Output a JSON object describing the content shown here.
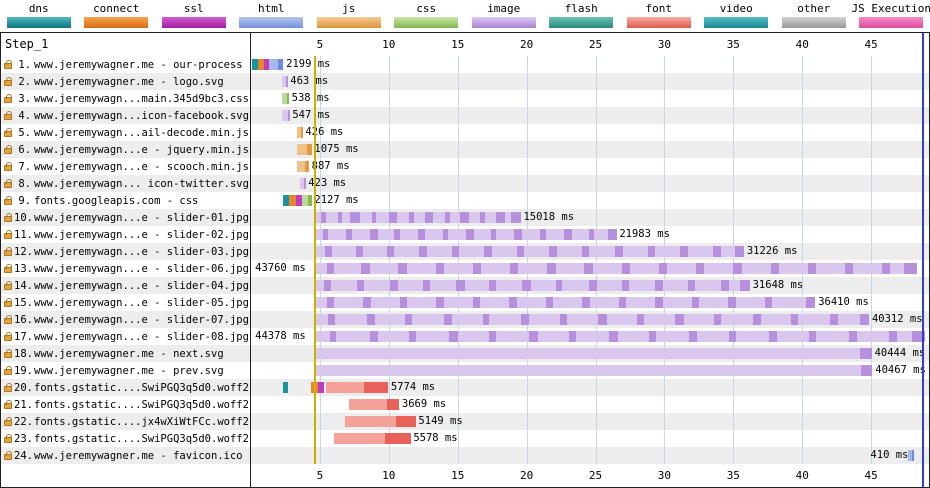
{
  "legend": {
    "items": [
      {
        "id": "dns",
        "label": "dns",
        "light": "#4FB6C2",
        "dark": "#0D7680"
      },
      {
        "id": "connect",
        "label": "connect",
        "light": "#F5A54E",
        "dark": "#D96C14"
      },
      {
        "id": "ssl",
        "label": "ssl",
        "light": "#D15CD1",
        "dark": "#A21EA2"
      },
      {
        "id": "html",
        "label": "html",
        "light": "#B6C6EE",
        "dark": "#7490D8"
      },
      {
        "id": "js",
        "label": "js",
        "light": "#F2CB96",
        "dark": "#DD9438"
      },
      {
        "id": "css",
        "label": "css",
        "light": "#CCE4AC",
        "dark": "#7FB84E"
      },
      {
        "id": "image",
        "label": "image",
        "light": "#DECBF0",
        "dark": "#AC82D6"
      },
      {
        "id": "flash",
        "label": "flash",
        "light": "#6CC2B2",
        "dark": "#2A8A7A"
      },
      {
        "id": "font",
        "label": "font",
        "light": "#F6ACA4",
        "dark": "#E45A4E"
      },
      {
        "id": "video",
        "label": "video",
        "light": "#55BCC2",
        "dark": "#1A8A92"
      },
      {
        "id": "other",
        "label": "other",
        "light": "#D2D2D2",
        "dark": "#9A9A9A"
      },
      {
        "id": "js-execution",
        "label": "JS Execution",
        "light": "#F48CC4",
        "dark": "#DE4E9E"
      }
    ]
  },
  "colors": {
    "dns": "#17949E",
    "connect": "#E8862E",
    "ssl": "#C13BC1",
    "html_l": "#A6BAE8",
    "html_d": "#6E8CD8",
    "js_l": "#EFC189",
    "js_d": "#DE9A45",
    "css_l": "#BCDB9A",
    "css_d": "#84BC52",
    "img_l": "#D9C7EE",
    "img_d": "#B690DC",
    "font_l": "#F4A29A",
    "font_d": "#E8625A",
    "gridline": "#C6D8E8"
  },
  "chart_data": {
    "type": "waterfall",
    "step_label": "Step_1",
    "time_axis": {
      "unit": "seconds",
      "ticks": [
        5,
        10,
        15,
        20,
        25,
        30,
        35,
        40,
        45
      ],
      "max_s": 49.2
    },
    "markers": {
      "start_render_s": 4.57,
      "start_render_color": "#C8B400",
      "doc_complete_s": 48.72,
      "doc_complete_color": "#2F3FD1"
    },
    "requests": [
      {
        "num": "1.",
        "label": "www.jeremywagner.me - our-process",
        "duration_ms": 2199,
        "duration_label": "2199 ms",
        "label_at": 2.55,
        "segments": [
          [
            "dns",
            0.1,
            0.5
          ],
          [
            "connect",
            0.5,
            0.95
          ],
          [
            "ssl",
            0.95,
            1.3
          ],
          [
            "html_l",
            1.3,
            1.95
          ],
          [
            "html_d",
            1.95,
            2.3
          ]
        ]
      },
      {
        "num": "2.",
        "label": "www.jeremywagner.me - logo.svg",
        "duration_ms": 463,
        "duration_label": "463 ms",
        "label_at": 2.85,
        "segments": [
          [
            "img_l",
            2.25,
            2.55
          ],
          [
            "img_d",
            2.55,
            2.71
          ]
        ]
      },
      {
        "num": "3.",
        "label": "www.jeremywagn...main.345d9bc3.css",
        "duration_ms": 538,
        "duration_label": "538 ms",
        "label_at": 2.95,
        "segments": [
          [
            "css_l",
            2.25,
            2.6
          ],
          [
            "css_d",
            2.6,
            2.79
          ]
        ]
      },
      {
        "num": "4.",
        "label": "www.jeremywagn...icon-facebook.svg",
        "duration_ms": 547,
        "duration_label": "547 ms",
        "label_at": 3.0,
        "segments": [
          [
            "img_l",
            2.28,
            2.65
          ],
          [
            "img_d",
            2.65,
            2.83
          ]
        ]
      },
      {
        "num": "5.",
        "label": "www.jeremywagn...ail-decode.min.js",
        "duration_ms": 426,
        "duration_label": "426 ms",
        "label_at": 3.95,
        "segments": [
          [
            "js_l",
            3.35,
            3.62
          ],
          [
            "js_d",
            3.62,
            3.78
          ]
        ]
      },
      {
        "num": "6.",
        "label": "www.jeremywagn...e - jquery.min.js",
        "duration_ms": 1075,
        "duration_label": "1075 ms",
        "label_at": 4.6,
        "segments": [
          [
            "js_l",
            3.35,
            4.05
          ],
          [
            "js_d",
            4.05,
            4.43
          ]
        ]
      },
      {
        "num": "7.",
        "label": "www.jeremywagn...e - scooch.min.js",
        "duration_ms": 887,
        "duration_label": "887 ms",
        "label_at": 4.4,
        "segments": [
          [
            "js_l",
            3.35,
            3.95
          ],
          [
            "js_d",
            3.95,
            4.24
          ]
        ]
      },
      {
        "num": "8.",
        "label": "www.jeremywagn... icon-twitter.svg",
        "duration_ms": 423,
        "duration_label": "423 ms",
        "label_at": 4.15,
        "segments": [
          [
            "img_l",
            3.55,
            3.84
          ],
          [
            "img_d",
            3.84,
            3.97
          ]
        ]
      },
      {
        "num": "9.",
        "label": "fonts.googleapis.com - css",
        "duration_ms": 2127,
        "duration_label": "2127 ms",
        "label_at": 4.6,
        "segments": [
          [
            "dns",
            2.3,
            2.78
          ],
          [
            "connect",
            2.78,
            3.3
          ],
          [
            "ssl",
            3.3,
            3.72
          ],
          [
            "css_l",
            3.72,
            4.15
          ],
          [
            "css_d",
            4.15,
            4.43
          ]
        ]
      },
      {
        "num": "10.",
        "label": "www.jeremywagn...e - slider-01.jpg",
        "duration_ms": 15018,
        "duration_label": "15018 ms",
        "label_at": 19.77,
        "segments": [
          [
            "img_l",
            4.55,
            19.57
          ]
        ],
        "chunks": [
          [
            5.1,
            5.45
          ],
          [
            6.3,
            6.6
          ],
          [
            7.2,
            7.9
          ],
          [
            8.8,
            9.1
          ],
          [
            10.0,
            10.6
          ],
          [
            11.5,
            11.8
          ],
          [
            12.6,
            13.2
          ],
          [
            14.1,
            14.45
          ],
          [
            15.2,
            15.8
          ],
          [
            16.6,
            16.95
          ],
          [
            17.8,
            18.4
          ],
          [
            18.9,
            19.57
          ]
        ]
      },
      {
        "num": "11.",
        "label": "www.jeremywagn...e - slider-02.jpg",
        "duration_ms": 21983,
        "duration_label": "21983 ms",
        "label_at": 26.73,
        "segments": [
          [
            "img_l",
            4.55,
            26.53
          ]
        ],
        "chunks": [
          [
            5.2,
            5.6
          ],
          [
            6.9,
            7.3
          ],
          [
            8.6,
            9.2
          ],
          [
            10.4,
            10.8
          ],
          [
            12.1,
            12.6
          ],
          [
            13.9,
            14.3
          ],
          [
            15.6,
            16.2
          ],
          [
            17.4,
            17.8
          ],
          [
            19.1,
            19.7
          ],
          [
            21.0,
            21.4
          ],
          [
            22.7,
            23.3
          ],
          [
            24.5,
            24.9
          ],
          [
            25.9,
            26.53
          ]
        ]
      },
      {
        "num": "12.",
        "label": "www.jeremywagn...e - slider-03.jpg",
        "duration_ms": 31226,
        "duration_label": "31226 ms",
        "label_at": 35.98,
        "segments": [
          [
            "img_l",
            4.55,
            35.78
          ]
        ],
        "chunks": [
          [
            5.4,
            5.9
          ],
          [
            7.6,
            8.1
          ],
          [
            9.9,
            10.4
          ],
          [
            12.2,
            12.8
          ],
          [
            14.6,
            15.1
          ],
          [
            16.9,
            17.5
          ],
          [
            19.3,
            19.8
          ],
          [
            21.6,
            22.2
          ],
          [
            24.0,
            24.5
          ],
          [
            26.4,
            27.0
          ],
          [
            28.8,
            29.3
          ],
          [
            31.1,
            31.7
          ],
          [
            33.5,
            34.1
          ],
          [
            35.1,
            35.78
          ]
        ]
      },
      {
        "num": "13.",
        "label": "www.jeremywagn...e - slider-06.jpg",
        "duration_ms": 43760,
        "duration_label": "43760 ms",
        "label_at": 0.3,
        "segments": [
          [
            "img_l",
            4.55,
            48.31
          ]
        ],
        "chunks": [
          [
            5.5,
            6.0
          ],
          [
            8.0,
            8.6
          ],
          [
            10.7,
            11.3
          ],
          [
            13.4,
            14.0
          ],
          [
            16.1,
            16.7
          ],
          [
            18.8,
            19.4
          ],
          [
            21.5,
            22.1
          ],
          [
            24.2,
            24.8
          ],
          [
            26.9,
            27.5
          ],
          [
            29.6,
            30.2
          ],
          [
            32.3,
            32.9
          ],
          [
            35.0,
            35.6
          ],
          [
            37.7,
            38.3
          ],
          [
            40.4,
            41.0
          ],
          [
            43.1,
            43.7
          ],
          [
            45.8,
            46.4
          ],
          [
            47.4,
            48.31
          ]
        ]
      },
      {
        "num": "14.",
        "label": "www.jeremywagn...e - slider-04.jpg",
        "duration_ms": 31648,
        "duration_label": "31648 ms",
        "label_at": 36.4,
        "segments": [
          [
            "img_l",
            4.55,
            36.2
          ]
        ],
        "chunks": [
          [
            5.3,
            5.8
          ],
          [
            7.7,
            8.2
          ],
          [
            10.1,
            10.7
          ],
          [
            12.5,
            13.0
          ],
          [
            14.9,
            15.5
          ],
          [
            17.3,
            17.8
          ],
          [
            19.7,
            20.3
          ],
          [
            22.1,
            22.6
          ],
          [
            24.5,
            25.1
          ],
          [
            26.9,
            27.4
          ],
          [
            29.3,
            29.9
          ],
          [
            31.7,
            32.2
          ],
          [
            34.1,
            34.7
          ],
          [
            35.5,
            36.2
          ]
        ]
      },
      {
        "num": "15.",
        "label": "www.jeremywagn...e - slider-05.jpg",
        "duration_ms": 36410,
        "duration_label": "36410 ms",
        "label_at": 41.16,
        "segments": [
          [
            "img_l",
            4.55,
            40.96
          ]
        ],
        "chunks": [
          [
            5.5,
            6.0
          ],
          [
            8.1,
            8.7
          ],
          [
            10.8,
            11.3
          ],
          [
            13.4,
            14.0
          ],
          [
            16.1,
            16.6
          ],
          [
            18.7,
            19.3
          ],
          [
            21.4,
            21.9
          ],
          [
            24.0,
            24.6
          ],
          [
            26.7,
            27.2
          ],
          [
            29.3,
            29.9
          ],
          [
            32.0,
            32.5
          ],
          [
            34.6,
            35.2
          ],
          [
            37.3,
            37.8
          ],
          [
            40.3,
            40.96
          ]
        ]
      },
      {
        "num": "16.",
        "label": "www.jeremywagn...e - slider-07.jpg",
        "duration_ms": 40312,
        "duration_label": "40312 ms",
        "label_at": 45.06,
        "segments": [
          [
            "img_l",
            4.55,
            44.86
          ]
        ],
        "chunks": [
          [
            5.6,
            6.1
          ],
          [
            8.4,
            9.0
          ],
          [
            11.2,
            11.7
          ],
          [
            14.0,
            14.6
          ],
          [
            16.8,
            17.3
          ],
          [
            19.6,
            20.2
          ],
          [
            22.4,
            22.9
          ],
          [
            25.2,
            25.8
          ],
          [
            28.0,
            28.5
          ],
          [
            30.8,
            31.4
          ],
          [
            33.6,
            34.1
          ],
          [
            36.4,
            37.0
          ],
          [
            39.2,
            39.7
          ],
          [
            42.0,
            42.6
          ],
          [
            44.2,
            44.86
          ]
        ]
      },
      {
        "num": "17.",
        "label": "www.jeremywagn...e - slider-08.jpg",
        "duration_ms": 44378,
        "duration_label": "44378 ms",
        "label_at": 0.3,
        "segments": [
          [
            "img_l",
            4.55,
            48.93
          ]
        ],
        "chunks": [
          [
            5.7,
            6.2
          ],
          [
            8.6,
            9.2
          ],
          [
            11.5,
            12.0
          ],
          [
            14.4,
            15.0
          ],
          [
            17.3,
            17.8
          ],
          [
            20.2,
            20.8
          ],
          [
            23.1,
            23.6
          ],
          [
            26.0,
            26.6
          ],
          [
            28.9,
            29.4
          ],
          [
            31.8,
            32.4
          ],
          [
            34.7,
            35.2
          ],
          [
            37.6,
            38.2
          ],
          [
            40.5,
            41.0
          ],
          [
            43.4,
            44.0
          ],
          [
            46.3,
            46.9
          ],
          [
            48.0,
            48.93
          ]
        ]
      },
      {
        "num": "18.",
        "label": "www.jeremywagner.me - next.svg",
        "duration_ms": 40444,
        "duration_label": "40444 ms",
        "label_at": 45.25,
        "segments": [
          [
            "img_l",
            4.6,
            44.3
          ]
        ],
        "chunks": [
          [
            44.2,
            45.04
          ]
        ]
      },
      {
        "num": "19.",
        "label": "www.jeremywagner.me - prev.svg",
        "duration_ms": 40467,
        "duration_label": "40467 ms",
        "label_at": 45.3,
        "segments": [
          [
            "img_l",
            4.6,
            44.35
          ]
        ],
        "chunks": [
          [
            44.25,
            45.07
          ]
        ]
      },
      {
        "num": "20.",
        "label": "fonts.gstatic....SwiPGQ3q5d0.woff2",
        "duration_ms": 5774,
        "duration_label": "5774 ms",
        "label_at": 10.15,
        "segments": [
          [
            "dns",
            2.35,
            2.65
          ],
          [
            "connect",
            4.35,
            4.85
          ],
          [
            "ssl",
            4.85,
            5.3
          ],
          [
            "font_l",
            5.45,
            8.2
          ],
          [
            "font_d",
            8.2,
            9.95
          ]
        ]
      },
      {
        "num": "21.",
        "label": "fonts.gstatic....SwiPGQ3q5d0.woff2",
        "duration_ms": 3669,
        "duration_label": "3669 ms",
        "label_at": 10.95,
        "segments": [
          [
            "font_l",
            7.1,
            9.9
          ],
          [
            "font_d",
            9.9,
            10.77
          ]
        ]
      },
      {
        "num": "22.",
        "label": "fonts.gstatic....jx4wXiWtFCc.woff2",
        "duration_ms": 5149,
        "duration_label": "5149 ms",
        "label_at": 12.15,
        "segments": [
          [
            "font_l",
            6.8,
            10.5
          ],
          [
            "font_d",
            10.5,
            11.95
          ]
        ]
      },
      {
        "num": "23.",
        "label": "fonts.gstatic....SwiPGQ3q5d0.woff2",
        "duration_ms": 5578,
        "duration_label": "5578 ms",
        "label_at": 11.78,
        "segments": [
          [
            "font_l",
            6.0,
            9.7
          ],
          [
            "font_d",
            9.7,
            11.58
          ]
        ]
      },
      {
        "num": "24.",
        "label": "www.jeremywagner.me - favicon.ico",
        "duration_ms": 410,
        "duration_label": "410 ms",
        "label_at": 44.95,
        "segments": [
          [
            "html_l",
            47.7,
            48.0
          ],
          [
            "html_d",
            48.0,
            48.11
          ]
        ]
      }
    ]
  }
}
